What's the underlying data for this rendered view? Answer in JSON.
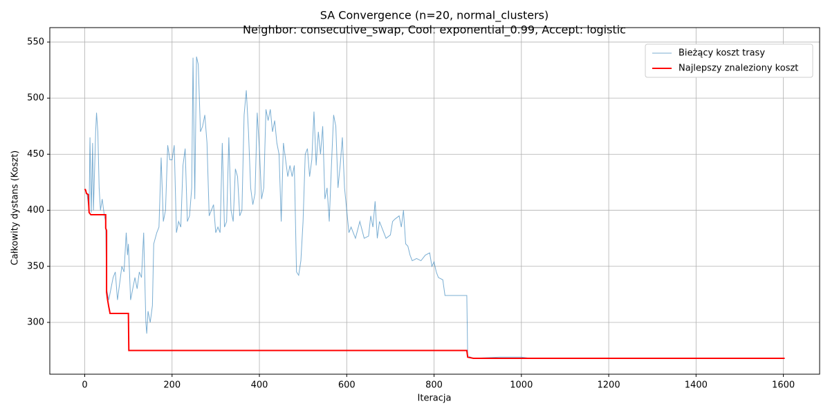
{
  "chart_data": {
    "type": "line",
    "title": "SA Convergence (n=20, normal_clusters)",
    "subtitle": "Neighbor: consecutive_swap, Cool: exponential_0.99, Accept: logistic",
    "xlabel": "Iteracja",
    "ylabel": "Całkowity dystans (Koszt)",
    "xlim": [
      -80,
      1683
    ],
    "ylim": [
      253.8,
      562.9
    ],
    "xticks": [
      0,
      200,
      400,
      600,
      800,
      1000,
      1200,
      1400,
      1600
    ],
    "yticks": [
      300,
      350,
      400,
      450,
      500,
      550
    ],
    "grid": true,
    "legend": "upper right",
    "series": [
      {
        "name": "Bieżący koszt trasy",
        "color": "#1f77b4",
        "alpha": 0.6,
        "linewidth": 1,
        "x": [
          0,
          5,
          10,
          12,
          15,
          18,
          20,
          25,
          27,
          30,
          33,
          36,
          40,
          45,
          48,
          50,
          55,
          60,
          65,
          70,
          75,
          80,
          85,
          90,
          95,
          98,
          100,
          105,
          110,
          115,
          120,
          125,
          130,
          135,
          140,
          142,
          145,
          150,
          155,
          158,
          165,
          170,
          175,
          180,
          185,
          190,
          195,
          200,
          205,
          210,
          215,
          220,
          225,
          230,
          235,
          240,
          245,
          248,
          252,
          256,
          260,
          265,
          270,
          275,
          280,
          285,
          290,
          295,
          300,
          305,
          310,
          315,
          320,
          325,
          330,
          335,
          340,
          345,
          350,
          355,
          360,
          365,
          370,
          375,
          380,
          385,
          390,
          395,
          400,
          405,
          410,
          415,
          420,
          425,
          430,
          435,
          440,
          445,
          450,
          455,
          460,
          465,
          470,
          475,
          480,
          485,
          490,
          495,
          500,
          505,
          510,
          515,
          520,
          525,
          530,
          535,
          540,
          545,
          550,
          555,
          560,
          565,
          570,
          575,
          580,
          585,
          590,
          595,
          600,
          605,
          610,
          620,
          630,
          640,
          650,
          655,
          660,
          665,
          670,
          675,
          680,
          690,
          700,
          705,
          710,
          720,
          725,
          730,
          735,
          740,
          745,
          750,
          760,
          770,
          780,
          790,
          795,
          800,
          805,
          810,
          820,
          825,
          840,
          875,
          877,
          890,
          950,
          1000,
          1020,
          1603
        ],
        "values": [
          419,
          415,
          400,
          465,
          398,
          460,
          400,
          470,
          487,
          470,
          420,
          400,
          410,
          395,
          390,
          330,
          320,
          330,
          340,
          345,
          320,
          335,
          350,
          345,
          380,
          360,
          370,
          320,
          330,
          340,
          330,
          345,
          340,
          380,
          300,
          290,
          310,
          300,
          315,
          370,
          380,
          385,
          447,
          390,
          400,
          458,
          445,
          445,
          458,
          380,
          390,
          385,
          440,
          455,
          390,
          395,
          420,
          536,
          410,
          537,
          530,
          470,
          475,
          485,
          460,
          395,
          400,
          405,
          380,
          385,
          380,
          460,
          385,
          390,
          465,
          400,
          390,
          437,
          430,
          395,
          400,
          485,
          507,
          470,
          420,
          405,
          415,
          487,
          455,
          410,
          420,
          490,
          480,
          490,
          470,
          480,
          460,
          450,
          390,
          460,
          445,
          430,
          440,
          430,
          440,
          345,
          342,
          355,
          390,
          450,
          455,
          430,
          445,
          488,
          440,
          470,
          450,
          475,
          410,
          420,
          390,
          440,
          485,
          475,
          420,
          440,
          465,
          420,
          400,
          380,
          385,
          375,
          390,
          375,
          377,
          395,
          385,
          408,
          375,
          390,
          385,
          375,
          378,
          390,
          392,
          395,
          385,
          400,
          370,
          368,
          360,
          355,
          357,
          355,
          360,
          362,
          350,
          354,
          345,
          340,
          338,
          324,
          324,
          324,
          270,
          268,
          269,
          269,
          268,
          268
        ]
      },
      {
        "name": "Najlepszy znaleziony koszt",
        "color": "#ff0000",
        "alpha": 1,
        "linewidth": 2,
        "x": [
          0,
          2,
          4,
          8,
          10,
          14,
          48,
          48,
          50,
          50,
          52,
          55,
          58,
          100,
          101,
          875,
          877,
          890,
          1603
        ],
        "values": [
          419,
          418,
          415,
          414,
          398,
          396,
          396,
          384,
          382,
          327,
          321,
          314,
          308,
          308,
          275,
          275,
          269,
          268,
          268
        ]
      }
    ]
  }
}
